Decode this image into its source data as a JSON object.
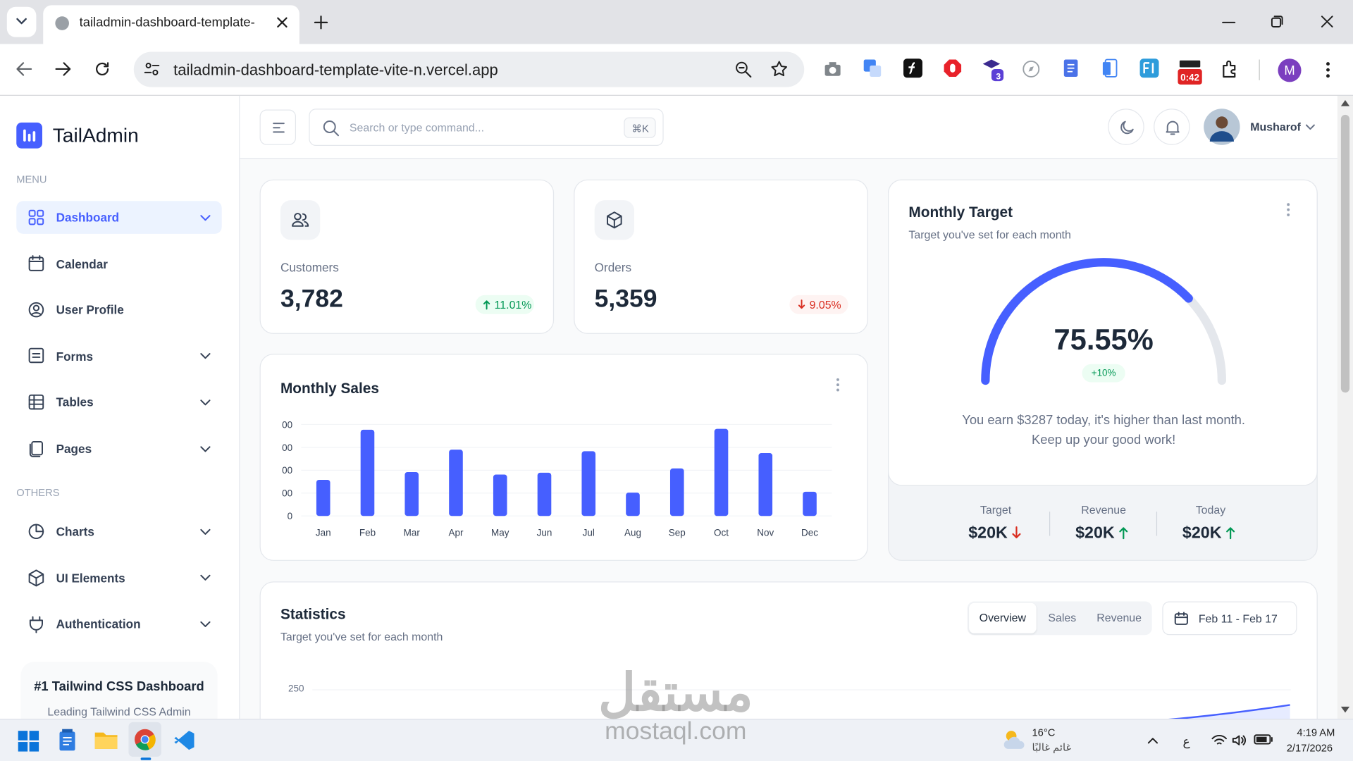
{
  "browser": {
    "tab_title": "tailadmin-dashboard-template-",
    "url": "tailadmin-dashboard-template-vite-n.vercel.app",
    "extension_badge": "3",
    "timer_badge": "0:42",
    "profile": "M"
  },
  "sidebar": {
    "brand": "TailAdmin",
    "menu_heading": "MENU",
    "menu": [
      "Dashboard",
      "Calendar",
      "User Profile",
      "Forms",
      "Tables",
      "Pages"
    ],
    "others_heading": "OTHERS",
    "others": [
      "Charts",
      "UI Elements",
      "Authentication"
    ],
    "promo": {
      "title": "#1 Tailwind CSS Dashboard",
      "text": "Leading Tailwind CSS Admin"
    }
  },
  "header": {
    "search_placeholder": "Search or type command...",
    "shortcut": "⌘K",
    "user": "Musharof"
  },
  "metrics": [
    {
      "label": "Customers",
      "value": "3,782",
      "change": "11.01%"
    },
    {
      "label": "Orders",
      "value": "5,359",
      "change": "9.05%"
    }
  ],
  "monthly_target": {
    "title": "Monthly Target",
    "subtitle": "Target you've set for each month",
    "gauge": {
      "value": 75.55,
      "label": "75.55%"
    },
    "badge": "+10%",
    "message": "You earn $3287 today, it's higher than last month.",
    "message_2": "Keep up your good work!",
    "stats": [
      {
        "label": "Target",
        "value": "$20K"
      },
      {
        "label": "Revenue",
        "value": "$20K"
      },
      {
        "label": "Today",
        "value": "$20K"
      }
    ]
  },
  "chart_data": {
    "type": "bar",
    "title": "Monthly Sales",
    "categories": [
      "Jan",
      "Feb",
      "Mar",
      "Apr",
      "May",
      "Jun",
      "Jul",
      "Aug",
      "Sep",
      "Oct",
      "Nov",
      "Dec"
    ],
    "values": [
      158,
      377,
      192,
      290,
      181,
      189,
      283,
      102,
      208,
      381,
      275,
      106
    ],
    "color": "#465fff",
    "ylim": [
      0,
      400
    ],
    "yticks": [
      0,
      {
        "value": 100,
        "label": "00"
      },
      {
        "value": 200,
        "label": "00"
      },
      {
        "value": 300,
        "label": "00"
      },
      {
        "value": 400,
        "label": "00"
      }
    ],
    "grid": true
  },
  "statistics": {
    "title": "Statistics",
    "subtitle": "Target you've set for each month",
    "tabs": [
      "Overview",
      "Sales",
      "Revenue"
    ],
    "date_range": "Feb 11 - Feb 17",
    "ytick": "250"
  },
  "taskbar": {
    "temperature": "16°C",
    "weather": "غائم غالبًا",
    "language": "ع",
    "time": "4:19 AM",
    "date": "2/17/2026"
  },
  "watermark": {
    "logo": "مستقل",
    "site": "mostaql.com"
  }
}
